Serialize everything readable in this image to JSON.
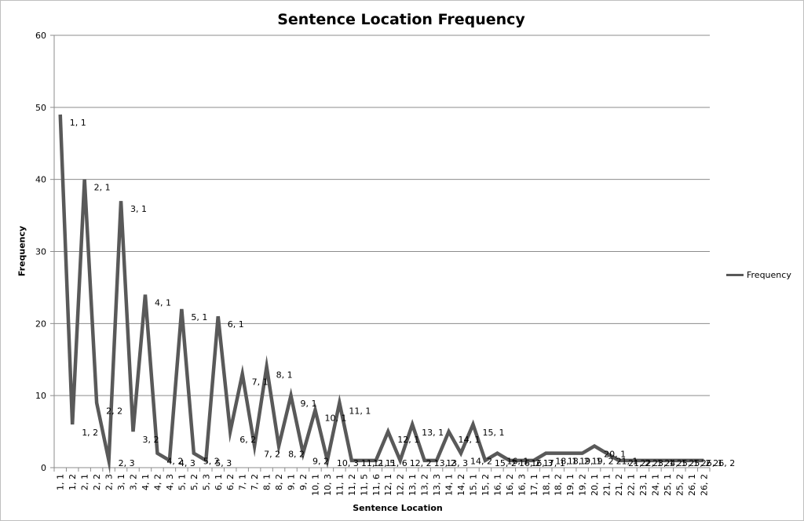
{
  "chart_data": {
    "type": "line",
    "title": "Sentence Location Frequency",
    "xlabel": "Sentence Location",
    "ylabel": "Frequency",
    "ylim": [
      0,
      60
    ],
    "yticks": [
      0,
      10,
      20,
      30,
      40,
      50,
      60
    ],
    "grid": true,
    "legend_position": "right",
    "line_color": "#595959",
    "categories": [
      "1, 1",
      "1, 2",
      "2, 1",
      "2, 2",
      "2, 3",
      "3, 1",
      "3, 2",
      "4, 1",
      "4, 2",
      "4, 3",
      "5, 1",
      "5, 2",
      "5, 3",
      "6, 1",
      "6, 2",
      "7, 1",
      "7, 2",
      "8, 1",
      "8, 2",
      "9, 1",
      "9, 2",
      "10, 1",
      "10, 3",
      "11, 1",
      "11, 2",
      "11, 5",
      "11, 6",
      "12, 1",
      "12, 2",
      "13, 1",
      "13, 2",
      "13, 3",
      "14, 1",
      "14, 2",
      "15, 1",
      "15, 2",
      "16, 1",
      "16, 2",
      "16, 3",
      "17, 1",
      "18, 1",
      "18, 2",
      "19, 1",
      "19, 2",
      "20, 1",
      "21, 1",
      "21, 2",
      "22, 1",
      "23, 1",
      "24, 1",
      "25, 1",
      "25, 2",
      "26, 1",
      "26, 2"
    ],
    "series": [
      {
        "name": "Frequency",
        "values": [
          49,
          6,
          40,
          9,
          1,
          37,
          5,
          24,
          2,
          1,
          22,
          2,
          1,
          21,
          5,
          13,
          3,
          14,
          3,
          10,
          2,
          8,
          1,
          9,
          1,
          1,
          1,
          5,
          1,
          6,
          1,
          1,
          5,
          2,
          6,
          1,
          2,
          1,
          1,
          1,
          2,
          2,
          2,
          2,
          3,
          2,
          1,
          1,
          1,
          1,
          1,
          1,
          1,
          1
        ]
      }
    ],
    "data_labels": [
      {
        "index": 0,
        "text": "1, 1"
      },
      {
        "index": 1,
        "text": "1, 2"
      },
      {
        "index": 2,
        "text": "2, 1"
      },
      {
        "index": 3,
        "text": "2, 2"
      },
      {
        "index": 4,
        "text": "2, 3"
      },
      {
        "index": 5,
        "text": "3, 1"
      },
      {
        "index": 6,
        "text": "3, 2"
      },
      {
        "index": 7,
        "text": "4, 1"
      },
      {
        "index": 8,
        "text": "4, 2"
      },
      {
        "index": 9,
        "text": "4, 3"
      },
      {
        "index": 10,
        "text": "5, 1"
      },
      {
        "index": 11,
        "text": "5, 2"
      },
      {
        "index": 12,
        "text": "5, 3"
      },
      {
        "index": 13,
        "text": "6, 1"
      },
      {
        "index": 14,
        "text": "6, 2"
      },
      {
        "index": 15,
        "text": "7, 1"
      },
      {
        "index": 16,
        "text": "7, 2"
      },
      {
        "index": 17,
        "text": "8, 1"
      },
      {
        "index": 18,
        "text": "8, 2"
      },
      {
        "index": 19,
        "text": "9, 1"
      },
      {
        "index": 20,
        "text": "9, 2"
      },
      {
        "index": 21,
        "text": "10, 1"
      },
      {
        "index": 22,
        "text": "10, 3"
      },
      {
        "index": 23,
        "text": "11, 1"
      },
      {
        "index": 24,
        "text": "11, 2"
      },
      {
        "index": 25,
        "text": "11, 5"
      },
      {
        "index": 26,
        "text": "11, 6"
      },
      {
        "index": 27,
        "text": "12, 1"
      },
      {
        "index": 28,
        "text": "12, 2"
      },
      {
        "index": 29,
        "text": "13, 1"
      },
      {
        "index": 30,
        "text": "13, 2"
      },
      {
        "index": 31,
        "text": "13, 3"
      },
      {
        "index": 32,
        "text": "14, 1"
      },
      {
        "index": 33,
        "text": "14, 2"
      },
      {
        "index": 34,
        "text": "15, 1"
      },
      {
        "index": 35,
        "text": "15, 2"
      },
      {
        "index": 36,
        "text": "16, 1"
      },
      {
        "index": 37,
        "text": "16, 2"
      },
      {
        "index": 38,
        "text": "16, 3"
      },
      {
        "index": 39,
        "text": "17, 1"
      },
      {
        "index": 40,
        "text": "18, 1"
      },
      {
        "index": 41,
        "text": "18, 2"
      },
      {
        "index": 42,
        "text": "19, 1"
      },
      {
        "index": 43,
        "text": "19, 2"
      },
      {
        "index": 44,
        "text": "20, 1"
      },
      {
        "index": 45,
        "text": "21, 1"
      },
      {
        "index": 46,
        "text": "21, 2"
      },
      {
        "index": 47,
        "text": "22, 1"
      },
      {
        "index": 48,
        "text": "23, 1"
      },
      {
        "index": 49,
        "text": "24, 1"
      },
      {
        "index": 50,
        "text": "25, 1"
      },
      {
        "index": 51,
        "text": "25, 2"
      },
      {
        "index": 52,
        "text": "26, 1"
      },
      {
        "index": 53,
        "text": "26, 2"
      }
    ]
  }
}
